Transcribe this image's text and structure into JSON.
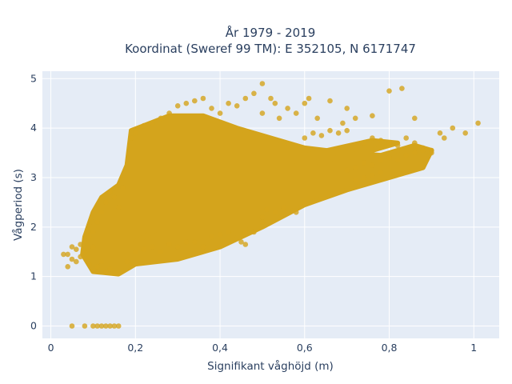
{
  "chart_data": {
    "type": "scatter",
    "title_lines": [
      "År 1979 - 2019",
      "Koordinat (Sweref 99 TM): E 352105, N 6171747"
    ],
    "xlabel": "Signifikant våghöjd (m)",
    "ylabel": "Vågperiod (s)",
    "xlim": [
      -0.02,
      1.06
    ],
    "ylim": [
      -0.25,
      5.15
    ],
    "x_ticks": [
      0,
      0.2,
      0.4,
      0.6,
      0.8,
      1
    ],
    "x_tick_labels": [
      "0",
      "0,2",
      "0,4",
      "0,6",
      "0,8",
      "1"
    ],
    "y_ticks": [
      0,
      1,
      2,
      3,
      4,
      5
    ],
    "y_tick_labels": [
      "0",
      "1",
      "2",
      "3",
      "4",
      "5"
    ],
    "grid": true,
    "marker_color": "#d4a41c",
    "background_color": "#e5ecf6",
    "points_note_free": true,
    "series": [
      {
        "points": [
          [
            0.05,
            0
          ],
          [
            0.08,
            0
          ],
          [
            0.1,
            0
          ],
          [
            0.11,
            0
          ],
          [
            0.12,
            0
          ],
          [
            0.13,
            0
          ],
          [
            0.14,
            0
          ],
          [
            0.15,
            0
          ],
          [
            0.16,
            0
          ],
          [
            0.03,
            1.45
          ],
          [
            0.04,
            1.45
          ],
          [
            0.04,
            1.2
          ],
          [
            0.05,
            1.35
          ],
          [
            0.05,
            1.6
          ],
          [
            0.06,
            1.55
          ],
          [
            0.06,
            1.3
          ],
          [
            0.07,
            1.65
          ],
          [
            0.07,
            1.4
          ],
          [
            0.08,
            1.75
          ],
          [
            0.08,
            1.5
          ],
          [
            0.09,
            1.8
          ],
          [
            0.09,
            1.25
          ],
          [
            0.1,
            1.9
          ],
          [
            0.1,
            1.6
          ],
          [
            0.11,
            1.2
          ],
          [
            0.11,
            2.1
          ],
          [
            0.12,
            1.3
          ],
          [
            0.12,
            2.3
          ],
          [
            0.13,
            2.5
          ],
          [
            0.13,
            1.1
          ],
          [
            0.14,
            2.7
          ],
          [
            0.14,
            1.15
          ],
          [
            0.15,
            2.6
          ],
          [
            0.16,
            2.4
          ],
          [
            0.17,
            2.8
          ],
          [
            0.18,
            1.3
          ],
          [
            0.19,
            3.8
          ],
          [
            0.2,
            3.9
          ],
          [
            0.22,
            4.05
          ],
          [
            0.24,
            4.1
          ],
          [
            0.26,
            4.2
          ],
          [
            0.28,
            4.3
          ],
          [
            0.3,
            4.45
          ],
          [
            0.32,
            4.5
          ],
          [
            0.34,
            4.55
          ],
          [
            0.36,
            4.6
          ],
          [
            0.38,
            4.4
          ],
          [
            0.4,
            4.3
          ],
          [
            0.42,
            4.5
          ],
          [
            0.44,
            4.45
          ],
          [
            0.46,
            4.6
          ],
          [
            0.48,
            4.7
          ],
          [
            0.5,
            4.9
          ],
          [
            0.5,
            4.3
          ],
          [
            0.52,
            4.6
          ],
          [
            0.53,
            4.5
          ],
          [
            0.54,
            4.2
          ],
          [
            0.56,
            4.4
          ],
          [
            0.58,
            4.3
          ],
          [
            0.6,
            4.5
          ],
          [
            0.61,
            4.6
          ],
          [
            0.63,
            4.2
          ],
          [
            0.66,
            4.55
          ],
          [
            0.69,
            4.1
          ],
          [
            0.7,
            4.4
          ],
          [
            0.72,
            4.2
          ],
          [
            0.76,
            4.25
          ],
          [
            0.8,
            4.75
          ],
          [
            0.83,
            4.8
          ],
          [
            0.86,
            4.2
          ],
          [
            0.2,
            1.5
          ],
          [
            0.22,
            1.55
          ],
          [
            0.24,
            1.6
          ],
          [
            0.26,
            1.5
          ],
          [
            0.28,
            1.65
          ],
          [
            0.3,
            1.6
          ],
          [
            0.32,
            1.7
          ],
          [
            0.34,
            1.7
          ],
          [
            0.36,
            1.6
          ],
          [
            0.38,
            1.8
          ],
          [
            0.4,
            1.85
          ],
          [
            0.42,
            1.9
          ],
          [
            0.45,
            1.7
          ],
          [
            0.46,
            1.9
          ],
          [
            0.46,
            1.65
          ],
          [
            0.48,
            1.9
          ],
          [
            0.5,
            2.2
          ],
          [
            0.5,
            2.1
          ],
          [
            0.51,
            2.35
          ],
          [
            0.53,
            2.3
          ],
          [
            0.55,
            2.4
          ],
          [
            0.58,
            2.3
          ],
          [
            0.6,
            2.5
          ],
          [
            0.6,
            3.8
          ],
          [
            0.62,
            3.9
          ],
          [
            0.64,
            3.85
          ],
          [
            0.66,
            3.95
          ],
          [
            0.68,
            3.9
          ],
          [
            0.7,
            3.95
          ],
          [
            0.72,
            3.6
          ],
          [
            0.74,
            3.7
          ],
          [
            0.76,
            3.8
          ],
          [
            0.78,
            3.75
          ],
          [
            0.8,
            3.7
          ],
          [
            0.82,
            3.65
          ],
          [
            0.84,
            3.8
          ],
          [
            0.86,
            3.7
          ],
          [
            0.88,
            3.6
          ],
          [
            0.9,
            3.55
          ],
          [
            0.92,
            3.9
          ],
          [
            0.93,
            3.8
          ],
          [
            0.95,
            4.0
          ],
          [
            0.98,
            3.9
          ],
          [
            1.01,
            4.1
          ],
          [
            0.7,
            3.15
          ],
          [
            0.72,
            3.2
          ],
          [
            0.74,
            3.3
          ],
          [
            0.76,
            3.25
          ],
          [
            0.78,
            3.35
          ],
          [
            0.8,
            3.4
          ],
          [
            0.82,
            3.35
          ],
          [
            0.84,
            3.45
          ],
          [
            0.86,
            3.5
          ],
          [
            0.88,
            3.55
          ],
          [
            0.9,
            3.5
          ],
          [
            0.72,
            2.95
          ],
          [
            0.74,
            3.0
          ],
          [
            0.76,
            3.05
          ],
          [
            0.78,
            3.1
          ]
        ]
      }
    ]
  }
}
